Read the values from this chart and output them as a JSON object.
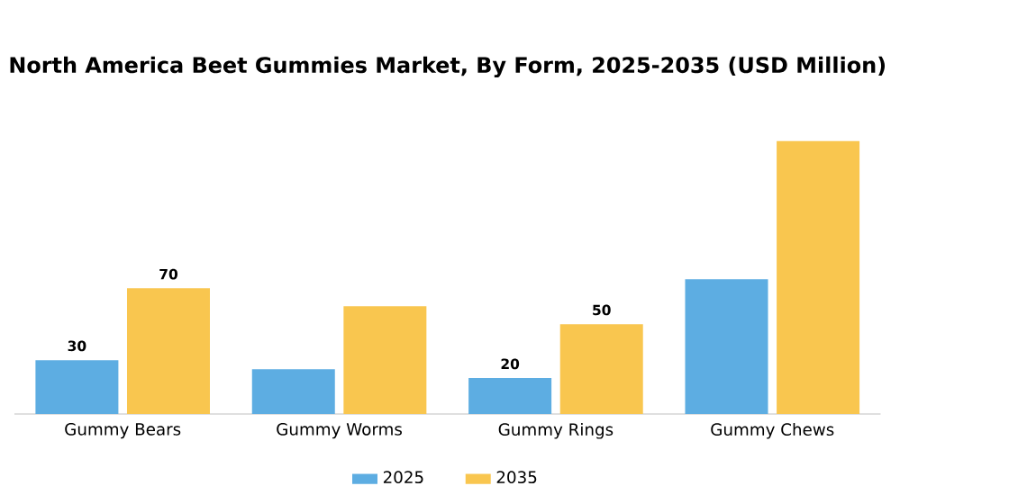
{
  "chart_data": {
    "type": "bar",
    "title": "North America Beet Gummies Market, By Form, 2025-2035 (USD Million)",
    "categories": [
      "Gummy Bears",
      "Gummy Worms",
      "Gummy Rings",
      "Gummy Chews"
    ],
    "series": [
      {
        "name": "2025",
        "color": "#5dade2",
        "values": [
          30,
          25,
          20,
          75
        ],
        "value_labels": [
          "30",
          null,
          "20",
          null
        ]
      },
      {
        "name": "2035",
        "color": "#f9c64f",
        "values": [
          70,
          60,
          50,
          152
        ],
        "value_labels": [
          "70",
          null,
          "50",
          null
        ]
      }
    ],
    "legend": "bottom"
  }
}
